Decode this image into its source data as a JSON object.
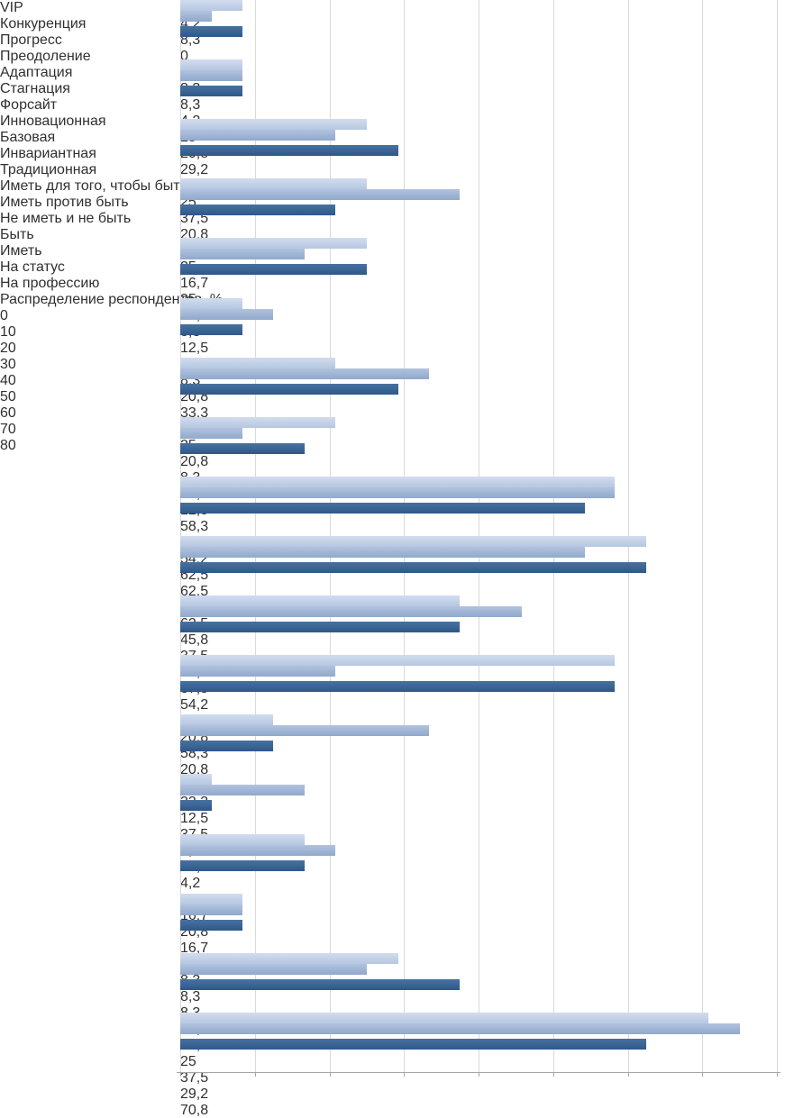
{
  "chart_data": {
    "type": "bar",
    "orientation": "horizontal",
    "title": "",
    "xlabel": "Распределение респондентов, %",
    "ylabel": "",
    "xlim": [
      0,
      80
    ],
    "x_ticks": [
      "0",
      "10",
      "20",
      "30",
      "40",
      "50",
      "60",
      "70",
      "80"
    ],
    "grid": true,
    "legend": "none visible",
    "series_colors_top_to_bottom": [
      "#c1d0e7",
      "#9fb4d6",
      "#3a6495",
      "#2b527e"
    ],
    "gridline_color": "#d9d9d9",
    "axis_color": "#a6a6a6",
    "groups": [
      {
        "category": "VIP",
        "values": [
          8.3,
          4.2,
          8.3,
          0
        ],
        "labels": [
          "8,3",
          "4,2",
          "8,3",
          "0"
        ]
      },
      {
        "category": "Конкуренция",
        "values": [
          8.3,
          8.3,
          8.3,
          4.2
        ],
        "labels": [
          "8,3",
          "8,3",
          "8,3",
          "4,2"
        ]
      },
      {
        "category": "Прогресс",
        "values": [
          25,
          20.8,
          29.2,
          29.2
        ],
        "labels": [
          "25",
          "20,8",
          "29,2",
          "29,2"
        ]
      },
      {
        "category": "Преодоление",
        "values": [
          25,
          37.5,
          20.8,
          41.7
        ],
        "labels": [
          "25",
          "37,5",
          "20,8",
          "41,7"
        ]
      },
      {
        "category": "Адаптация",
        "values": [
          25,
          16.7,
          25,
          16.7
        ],
        "labels": [
          "25",
          "16,7",
          "25",
          "16,7"
        ]
      },
      {
        "category": "Стагнация",
        "values": [
          8.3,
          12.5,
          8.3,
          8.3
        ],
        "labels": [
          "8,3",
          "12,5",
          "8,3",
          "8,3"
        ]
      },
      {
        "category": "Форсайт",
        "values": [
          20.8,
          33.3,
          29.2,
          25
        ],
        "labels": [
          "20,8",
          "33,3",
          "29,2",
          "25"
        ]
      },
      {
        "category": "Инновационная",
        "values": [
          20.8,
          8.3,
          16.7,
          12.5
        ],
        "labels": [
          "20,8",
          "8,3",
          "16,7",
          "12,5"
        ]
      },
      {
        "category": "Базовая",
        "values": [
          58.3,
          58.3,
          54.2,
          62.5
        ],
        "labels": [
          "58,3",
          "58,3",
          "54,2",
          "62,5"
        ]
      },
      {
        "category": "Инвариантная",
        "values": [
          62.5,
          54.2,
          62.5,
          45.8
        ],
        "labels": [
          "62,5",
          "54,2",
          "62,5",
          "45,8"
        ]
      },
      {
        "category": "Традиционная",
        "values": [
          37.5,
          45.8,
          37.5,
          54.2
        ],
        "labels": [
          "37,5",
          "45,8",
          "37,5",
          "54,2"
        ]
      },
      {
        "category": "Иметь для того, чтобы быть",
        "values": [
          58.3,
          20.8,
          58.3,
          20.8
        ],
        "labels": [
          "58,3",
          "20,8",
          "58,3",
          "20,8"
        ]
      },
      {
        "category": "Иметь против быть",
        "values": [
          12.5,
          33.3,
          12.5,
          37.5
        ],
        "labels": [
          "12,5",
          "33,3",
          "12,5",
          "37,5"
        ]
      },
      {
        "category": "Не иметь и не быть",
        "values": [
          4.2,
          16.7,
          4.2,
          8.3
        ],
        "labels": [
          "4,2",
          "16,7",
          "4,2",
          "8,3"
        ]
      },
      {
        "category": "Быть",
        "values": [
          16.7,
          20.8,
          16.7,
          16.7
        ],
        "labels": [
          "16,7",
          "20,8",
          "16,7",
          "16,7"
        ]
      },
      {
        "category": "Иметь",
        "values": [
          8.3,
          8.3,
          8.3,
          16.7
        ],
        "labels": [
          "8,3",
          "8,3",
          "8,3",
          "16,7"
        ]
      },
      {
        "category": "На статус",
        "values": [
          29.2,
          25,
          37.5,
          29.2
        ],
        "labels": [
          "29,2",
          "25",
          "37,5",
          "29,2"
        ]
      },
      {
        "category": "На профессию",
        "values": [
          70.8,
          75,
          62.5,
          70.8
        ],
        "labels": [
          "70,8",
          "75",
          "62,5",
          "70,8"
        ]
      }
    ]
  }
}
